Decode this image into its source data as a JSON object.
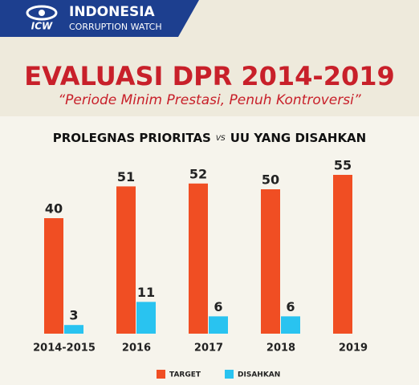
{
  "logo": {
    "mark": "ICW",
    "name": "INDONESIA",
    "subname": "CORRUPTION WATCH"
  },
  "chart_data": {
    "type": "bar",
    "title": "EVALUASI DPR 2014-2019",
    "subtitle": "“Periode Minim Prestasi, Penuh Kontroversi”",
    "heading": {
      "left": "PROLEGNAS PRIORITAS",
      "vs": "VS",
      "right": "UU YANG DISAHKAN"
    },
    "categories": [
      "2014-2015",
      "2016",
      "2017",
      "2018",
      "2019"
    ],
    "series": [
      {
        "name": "TARGET",
        "color": "#f04e23",
        "values": [
          40,
          51,
          52,
          50,
          55
        ]
      },
      {
        "name": "DISAHKAN",
        "color": "#29c3f0",
        "values": [
          3,
          11,
          6,
          6,
          null
        ]
      }
    ],
    "ylim": [
      0,
      60
    ]
  }
}
